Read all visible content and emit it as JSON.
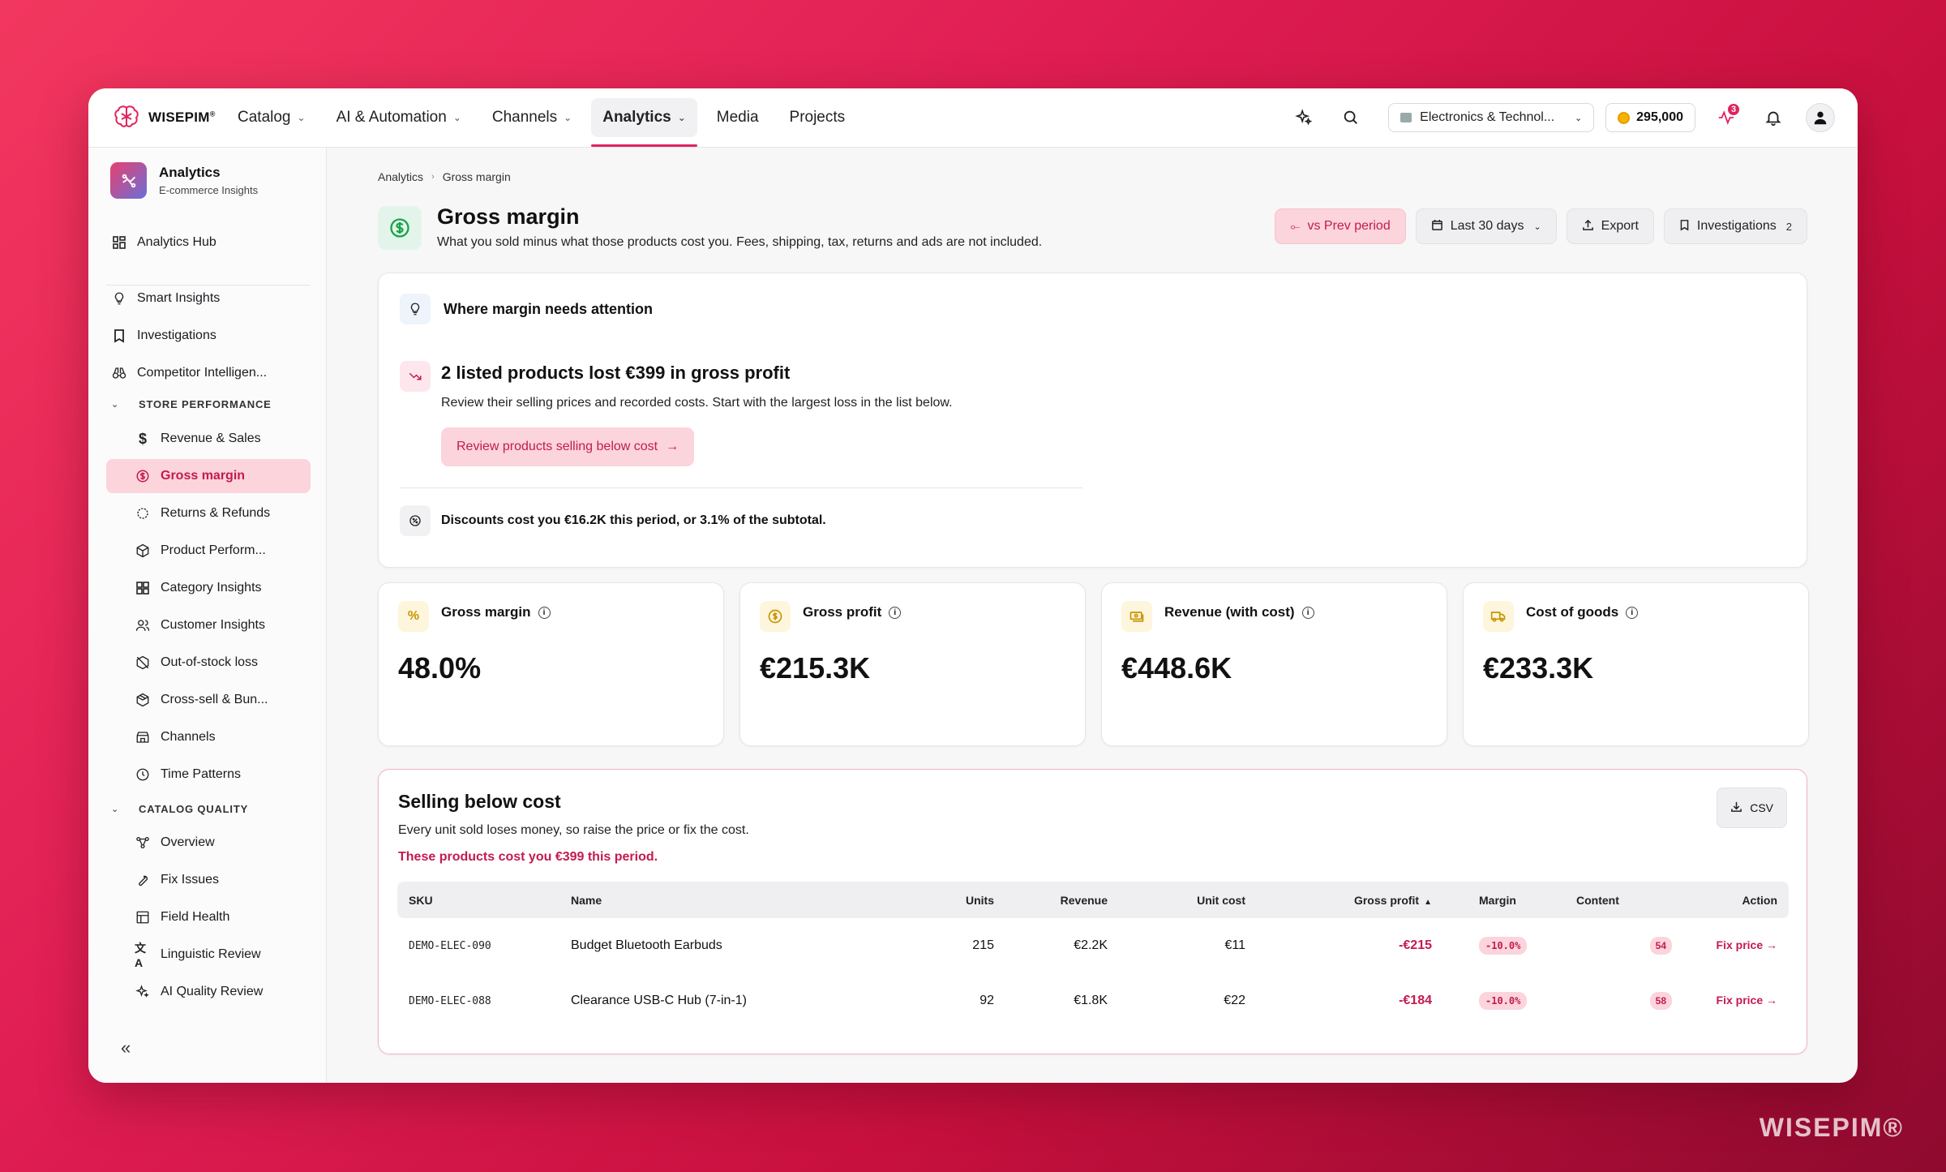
{
  "brand": {
    "name": "WISEPIM",
    "reg": "®",
    "watermark": "WISEPIM®"
  },
  "nav": {
    "items": [
      {
        "label": "Catalog",
        "dropdown": true
      },
      {
        "label": "AI & Automation",
        "dropdown": true
      },
      {
        "label": "Channels",
        "dropdown": true
      },
      {
        "label": "Analytics",
        "dropdown": true,
        "active": true
      },
      {
        "label": "Media",
        "dropdown": false
      },
      {
        "label": "Projects",
        "dropdown": false
      }
    ],
    "store": "Electronics & Technol...",
    "credits": "295,000",
    "activity_badge": "3",
    "accent": "#e0245e"
  },
  "sidebar": {
    "title": "Analytics",
    "subtitle": "E-commerce Insights",
    "hub": "Analytics Hub",
    "top": [
      "Smart Insights",
      "Investigations",
      "Competitor Intelligen..."
    ],
    "group1": "STORE PERFORMANCE",
    "store_items": [
      "Revenue & Sales",
      "Gross margin",
      "Returns & Refunds",
      "Product Perform...",
      "Category Insights",
      "Customer Insights",
      "Out-of-stock loss",
      "Cross-sell & Bun...",
      "Channels",
      "Time Patterns"
    ],
    "group2": "CATALOG QUALITY",
    "catalog_items": [
      "Overview",
      "Fix Issues",
      "Field Health",
      "Linguistic Review",
      "AI Quality Review"
    ],
    "collapse": "«"
  },
  "breadcrumb": [
    "Analytics",
    "Gross margin"
  ],
  "page": {
    "title": "Gross margin",
    "subtitle": "What you sold minus what those products cost you. Fees, shipping, tax, returns and ads are not included.",
    "compare": "vs Prev period",
    "range": "Last 30 days",
    "export": "Export",
    "investigations": "Investigations",
    "investigations_count": "2"
  },
  "attention": {
    "title": "Where margin needs attention",
    "loss_title": "2 listed products lost €399 in gross profit",
    "loss_sub": "Review their selling prices and recorded costs. Start with the largest loss in the list below.",
    "cta": "Review products selling below cost",
    "discount": "Discounts cost you €16.2K this period, or 3.1% of the subtotal."
  },
  "kpis": [
    {
      "label": "Gross margin",
      "value": "48.0%",
      "icon": "percent-icon"
    },
    {
      "label": "Gross profit",
      "value": "€215.3K",
      "icon": "coin-icon"
    },
    {
      "label": "Revenue (with cost)",
      "value": "€448.6K",
      "icon": "cash-icon"
    },
    {
      "label": "Cost of goods",
      "value": "€233.3K",
      "icon": "truck-icon"
    }
  ],
  "below_cost": {
    "title": "Selling below cost",
    "subtitle": "Every unit sold loses money, so raise the price or fix the cost.",
    "warning": "These products cost you €399 this period.",
    "csv": "CSV",
    "columns": [
      "SKU",
      "Name",
      "Units",
      "Revenue",
      "Unit cost",
      "Gross profit",
      "Margin",
      "Content",
      "Action"
    ],
    "rows": [
      {
        "sku": "DEMO-ELEC-090",
        "name": "Budget Bluetooth Earbuds",
        "units": "215",
        "revenue": "€2.2K",
        "unit_cost": "€11",
        "gross_profit": "-€215",
        "margin": "-10.0%",
        "content": "54",
        "action": "Fix price →"
      },
      {
        "sku": "DEMO-ELEC-088",
        "name": "Clearance USB-C Hub (7-in-1)",
        "units": "92",
        "revenue": "€1.8K",
        "unit_cost": "€22",
        "gross_profit": "-€184",
        "margin": "-10.0%",
        "content": "58",
        "action": "Fix price →"
      }
    ]
  }
}
